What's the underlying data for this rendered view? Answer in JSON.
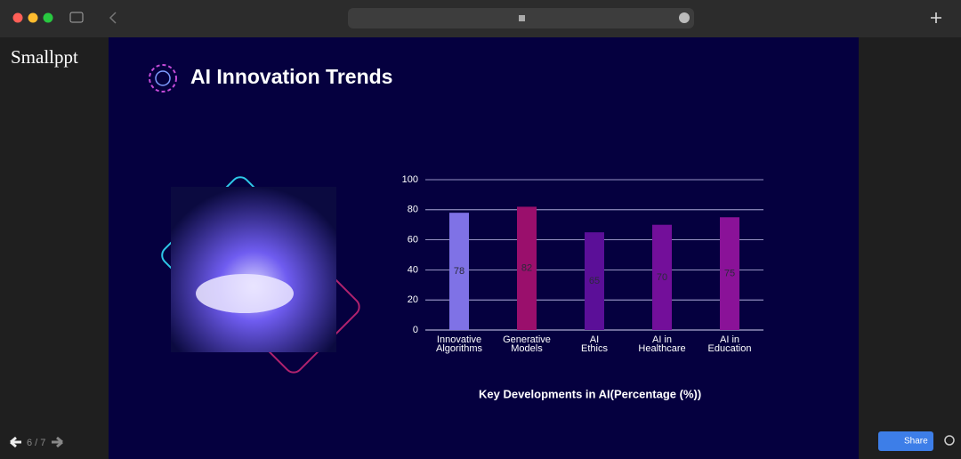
{
  "sidebar": {
    "logo": "Smallppt"
  },
  "slide": {
    "title": "AI Innovation Trends"
  },
  "chart_data": {
    "type": "bar",
    "title": "Key Developments in AI(Percentage (%))",
    "categories": [
      "Innovative Algorithms",
      "Generative Models",
      "AI Ethics",
      "AI in Healthcare",
      "AI in Education"
    ],
    "values": [
      78,
      82,
      65,
      70,
      75
    ],
    "colors": [
      "#7f72e6",
      "#9a0f6c",
      "#5b0f98",
      "#730f9a",
      "#8a1298"
    ],
    "ylim": [
      0,
      100
    ],
    "yticks": [
      0,
      20,
      40,
      60,
      80,
      100
    ],
    "grid": true
  },
  "pager": "6 / 7",
  "share": "Share"
}
